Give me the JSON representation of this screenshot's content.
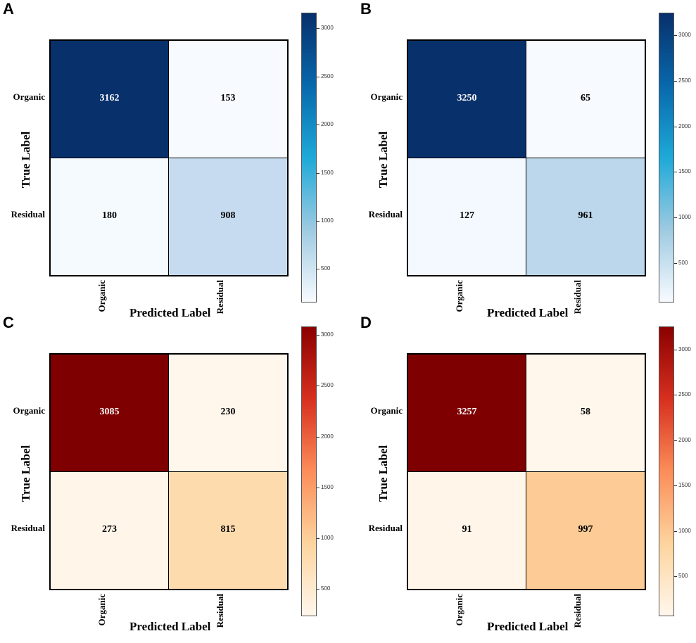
{
  "panels": [
    {
      "letter": "A",
      "scheme": "blues",
      "matrix": [
        [
          3162,
          153
        ],
        [
          180,
          908
        ]
      ],
      "row_labels": [
        "Organic",
        "Residual"
      ],
      "col_labels": [
        "Organic",
        "Residual"
      ],
      "xlabel": "Predicted Label",
      "ylabel": "True Label",
      "colorbar": {
        "min": 153,
        "max": 3162,
        "ticks": [
          "500",
          "1000",
          "1500",
          "2000",
          "2500",
          "3000"
        ]
      }
    },
    {
      "letter": "B",
      "scheme": "blues",
      "matrix": [
        [
          3250,
          65
        ],
        [
          127,
          961
        ]
      ],
      "row_labels": [
        "Organic",
        "Residual"
      ],
      "col_labels": [
        "Organic",
        "Residual"
      ],
      "xlabel": "Predicted Label",
      "ylabel": "True Label",
      "colorbar": {
        "min": 65,
        "max": 3250,
        "ticks": [
          "500",
          "1000",
          "1500",
          "2000",
          "2500",
          "3000"
        ]
      }
    },
    {
      "letter": "C",
      "scheme": "reds",
      "matrix": [
        [
          3085,
          230
        ],
        [
          273,
          815
        ]
      ],
      "row_labels": [
        "Organic",
        "Residual"
      ],
      "col_labels": [
        "Organic",
        "Residual"
      ],
      "xlabel": "Predicted Label",
      "ylabel": "True Label",
      "colorbar": {
        "min": 230,
        "max": 3085,
        "ticks": [
          "500",
          "1000",
          "1500",
          "2000",
          "2500",
          "3000"
        ]
      }
    },
    {
      "letter": "D",
      "scheme": "reds",
      "matrix": [
        [
          3257,
          58
        ],
        [
          91,
          997
        ]
      ],
      "row_labels": [
        "Organic",
        "Residual"
      ],
      "col_labels": [
        "Organic",
        "Residual"
      ],
      "xlabel": "Predicted Label",
      "ylabel": "True Label",
      "colorbar": {
        "min": 58,
        "max": 3257,
        "ticks": [
          "500",
          "1000",
          "1500",
          "2000",
          "2500",
          "3000"
        ]
      }
    }
  ],
  "chart_data": [
    {
      "type": "heatmap",
      "title": "A",
      "xlabel": "Predicted Label",
      "ylabel": "True Label",
      "x_categories": [
        "Organic",
        "Residual"
      ],
      "y_categories": [
        "Organic",
        "Residual"
      ],
      "values": [
        [
          3162,
          153
        ],
        [
          180,
          908
        ]
      ],
      "colormap": "Blues",
      "colorbar_ticks": [
        500,
        1000,
        1500,
        2000,
        2500,
        3000
      ]
    },
    {
      "type": "heatmap",
      "title": "B",
      "xlabel": "Predicted Label",
      "ylabel": "True Label",
      "x_categories": [
        "Organic",
        "Residual"
      ],
      "y_categories": [
        "Organic",
        "Residual"
      ],
      "values": [
        [
          3250,
          65
        ],
        [
          127,
          961
        ]
      ],
      "colormap": "Blues",
      "colorbar_ticks": [
        500,
        1000,
        1500,
        2000,
        2500,
        3000
      ]
    },
    {
      "type": "heatmap",
      "title": "C",
      "xlabel": "Predicted Label",
      "ylabel": "True Label",
      "x_categories": [
        "Organic",
        "Residual"
      ],
      "y_categories": [
        "Organic",
        "Residual"
      ],
      "values": [
        [
          3085,
          230
        ],
        [
          273,
          815
        ]
      ],
      "colormap": "OrRd",
      "colorbar_ticks": [
        500,
        1000,
        1500,
        2000,
        2500,
        3000
      ]
    },
    {
      "type": "heatmap",
      "title": "D",
      "xlabel": "Predicted Label",
      "ylabel": "True Label",
      "x_categories": [
        "Organic",
        "Residual"
      ],
      "y_categories": [
        "Organic",
        "Residual"
      ],
      "values": [
        [
          3257,
          58
        ],
        [
          91,
          997
        ]
      ],
      "colormap": "OrRd",
      "colorbar_ticks": [
        500,
        1000,
        1500,
        2000,
        2500,
        3000
      ]
    }
  ],
  "colors": {
    "blues": [
      "#f7fbff",
      "#deebf7",
      "#c6dbef",
      "#9ecae1",
      "#6baed6",
      "#4292c6",
      "#2171b5",
      "#08519c",
      "#08306b"
    ],
    "reds": [
      "#fff7ec",
      "#fee8c8",
      "#fdd49e",
      "#fdbb84",
      "#fc8d59",
      "#ef6548",
      "#d7301f",
      "#b30000",
      "#7f0000"
    ],
    "cbar_blues": [
      "#08306b",
      "#0868ac",
      "#1ea9d8",
      "#9ecae1",
      "#f7fbff"
    ],
    "cbar_reds": [
      "#8b0000",
      "#d7301f",
      "#fc8d59",
      "#fdd49e",
      "#fff7ec"
    ]
  }
}
